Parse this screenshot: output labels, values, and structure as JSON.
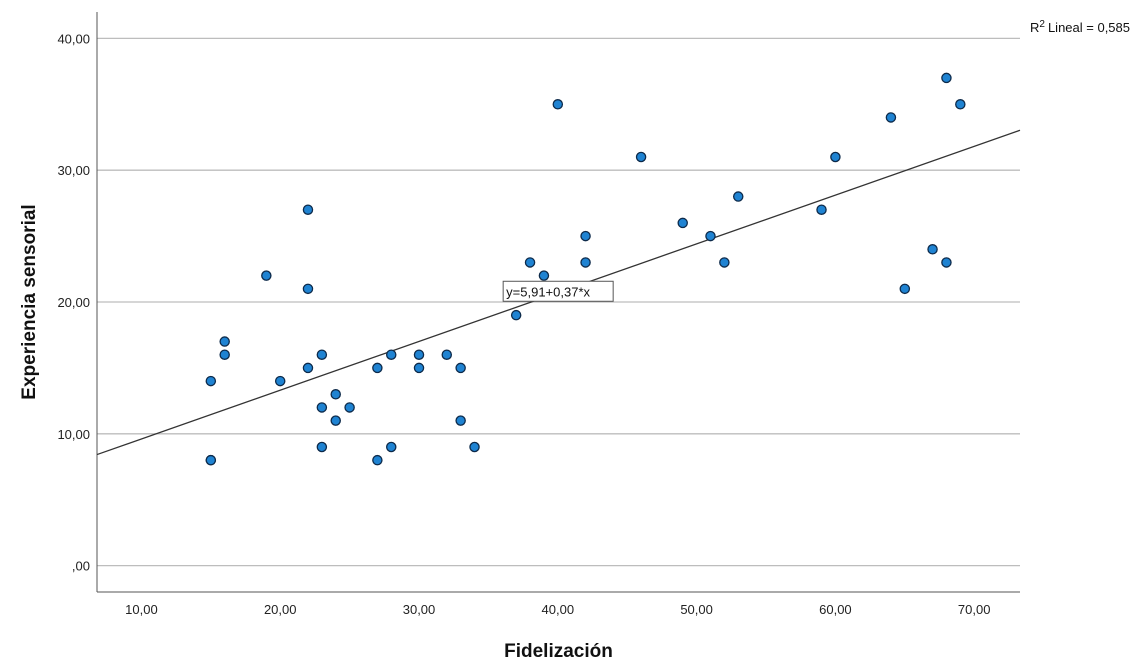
{
  "chart_data": {
    "type": "scatter",
    "xlabel": "Fidelización",
    "ylabel": "Experiencia sensorial",
    "xlim": [
      6.8,
      73.3
    ],
    "ylim": [
      -2,
      42
    ],
    "x_ticks": [
      10,
      20,
      30,
      40,
      50,
      60,
      70
    ],
    "x_tick_labels": [
      "10,00",
      "20,00",
      "30,00",
      "40,00",
      "50,00",
      "60,00",
      "70,00"
    ],
    "y_ticks": [
      0,
      10,
      20,
      30,
      40
    ],
    "y_tick_labels": [
      ",00",
      "10,00",
      "20,00",
      "30,00",
      "40,00"
    ],
    "grid": "horizontal",
    "r2_label": "Lineal = 0,585",
    "r2_prefix": "R",
    "r2_sup": "2",
    "fit_label": "y=5,91+0,37*x",
    "fit": {
      "intercept": 5.91,
      "slope": 0.37
    },
    "colors": {
      "point_fill": "#1f83d2",
      "point_stroke": "#0d2a4a",
      "line": "#333333",
      "grid": "#bdbdbd",
      "axis": "#555555"
    },
    "points": [
      [
        15,
        14
      ],
      [
        15,
        8
      ],
      [
        15,
        8
      ],
      [
        16,
        17
      ],
      [
        16,
        16
      ],
      [
        19,
        22
      ],
      [
        20,
        14
      ],
      [
        22,
        27
      ],
      [
        22,
        21
      ],
      [
        22,
        15
      ],
      [
        23,
        16
      ],
      [
        23,
        12
      ],
      [
        23,
        9
      ],
      [
        24,
        13
      ],
      [
        24,
        11
      ],
      [
        25,
        12
      ],
      [
        27,
        15
      ],
      [
        27,
        8
      ],
      [
        28,
        16
      ],
      [
        28,
        9
      ],
      [
        30,
        16
      ],
      [
        30,
        15
      ],
      [
        32,
        16
      ],
      [
        33,
        15
      ],
      [
        33,
        11
      ],
      [
        34,
        9
      ],
      [
        37,
        19
      ],
      [
        38,
        23
      ],
      [
        39,
        22
      ],
      [
        40,
        35
      ],
      [
        42,
        25
      ],
      [
        42,
        23
      ],
      [
        46,
        31
      ],
      [
        49,
        26
      ],
      [
        51,
        25
      ],
      [
        52,
        23
      ],
      [
        53,
        28
      ],
      [
        59,
        27
      ],
      [
        60,
        31
      ],
      [
        64,
        34
      ],
      [
        65,
        21
      ],
      [
        67,
        24
      ],
      [
        68,
        37
      ],
      [
        68,
        23
      ],
      [
        69,
        35
      ]
    ]
  }
}
